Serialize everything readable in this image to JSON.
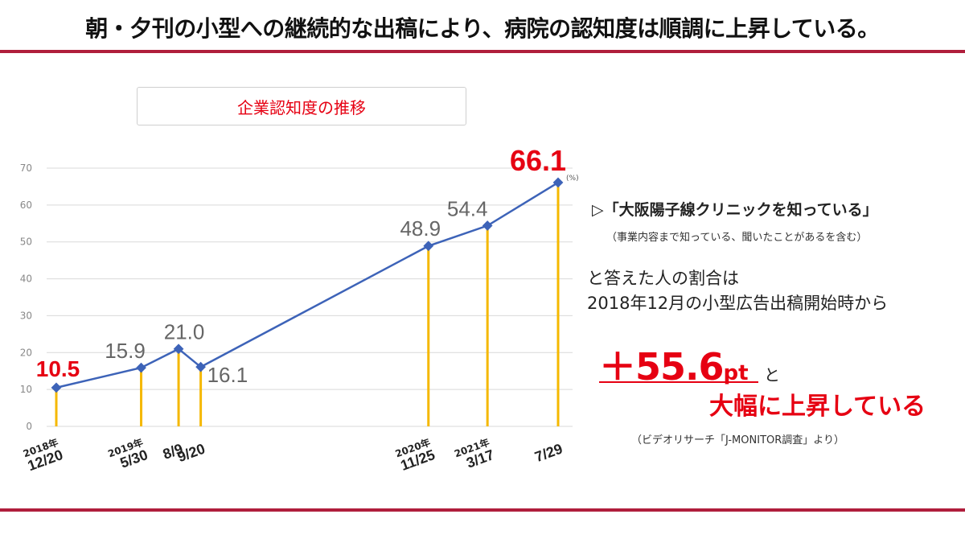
{
  "headline": "朝・夕刊の小型への継続的な出稿により、病院の認知度は順調に上昇している。",
  "colors": {
    "accent_rule": "#b01e3c",
    "emphasis_red": "#e60012",
    "line_blue": "#3d63b8",
    "bar_gold": "#f5b800",
    "grid": "#d9d9d9"
  },
  "chart_data": {
    "type": "line",
    "title": "企業認知度の推移",
    "unit_label": "(%)",
    "ylim": [
      0,
      70
    ],
    "yticks": [
      0,
      10,
      20,
      30,
      40,
      50,
      60,
      70
    ],
    "grid": true,
    "x": [
      "2018-12-20",
      "2019-05-30",
      "2019-08-09",
      "2019-09-20",
      "2020-11-25",
      "2021-03-17",
      "2021-07-29"
    ],
    "x_labels": [
      {
        "year": "2018年",
        "date": "12/20"
      },
      {
        "year": "2019年",
        "date": "5/30"
      },
      {
        "year": "",
        "date": "8/9"
      },
      {
        "year": "",
        "date": "9/20"
      },
      {
        "year": "2020年",
        "date": "11/25"
      },
      {
        "year": "2021年",
        "date": "3/17"
      },
      {
        "year": "",
        "date": "7/29"
      }
    ],
    "values": [
      10.5,
      15.9,
      21.0,
      16.1,
      48.9,
      54.4,
      66.1
    ],
    "value_labels": [
      "10.5",
      "15.9",
      "21.0",
      "16.1",
      "48.9",
      "54.4",
      "66.1"
    ],
    "highlighted": [
      "10.5",
      "66.1"
    ]
  },
  "annotation": {
    "survey_question": "▷「大阪陽子線クリニックを知っている」",
    "survey_note": "（事業内容まで知っている、聞いたことがあるを含む）",
    "answer_line1": "と答えた人の割合は",
    "answer_line2": "2018年12月の小型広告出稿開始時から",
    "increase_value": "＋55.6",
    "increase_unit": "pt",
    "increase_suffix": "と",
    "rise_text": "大幅に上昇している",
    "source": "（ビデオリサーチ「J-MONITOR調査」より）"
  }
}
